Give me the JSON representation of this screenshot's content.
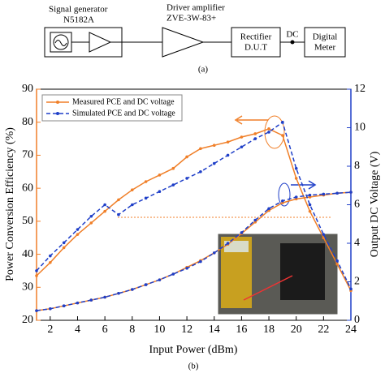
{
  "diagram": {
    "generator_title": "Signal generator",
    "generator_model": "N5182A",
    "amp_title": "Driver amplifier",
    "amp_model": "ZVE-3W-83+",
    "rectifier": "Rectifier",
    "dut": "D.U.T",
    "dc": "DC",
    "meter_1": "Digital",
    "meter_2": "Meter",
    "caption": "(a)"
  },
  "chart_data": {
    "type": "line",
    "caption": "(b)",
    "x_label": "Input Power (dBm)",
    "y_label": "Power Conversion Efficiency (%)",
    "y2_label": "Output DC Voltage (V)",
    "x": [
      1,
      2,
      3,
      4,
      5,
      6,
      7,
      8,
      9,
      10,
      11,
      12,
      13,
      14,
      15,
      16,
      17,
      18,
      19,
      20,
      21,
      22,
      23,
      24
    ],
    "xlim": [
      1,
      24
    ],
    "xticks": [
      2,
      4,
      6,
      8,
      10,
      12,
      14,
      16,
      18,
      20,
      22,
      24
    ],
    "ylim": [
      20,
      90
    ],
    "yticks": [
      20,
      30,
      40,
      50,
      60,
      70,
      80,
      90
    ],
    "y2lim": [
      0,
      12
    ],
    "y2ticks": [
      0,
      2,
      4,
      6,
      8,
      10,
      12
    ],
    "y_color": "#f07f28",
    "y2_color": "#1f3fc8",
    "series": [
      {
        "name": "Measured PCE and DC voltage",
        "color": "#f07f28",
        "line_style": "solid",
        "values": [
          33.5,
          37.5,
          42,
          46,
          49.5,
          53,
          56.5,
          59.5,
          62,
          64,
          66,
          69.5,
          72,
          73,
          74,
          75.5,
          76.5,
          78,
          76,
          63,
          53,
          45,
          37,
          29
        ],
        "y2_values": [
          0.5,
          0.6,
          0.75,
          0.9,
          1.05,
          1.2,
          1.4,
          1.6,
          1.85,
          2.1,
          2.4,
          2.75,
          3.1,
          3.5,
          3.95,
          4.5,
          5.1,
          5.7,
          6.1,
          6.3,
          6.4,
          6.5,
          6.6,
          6.65
        ]
      },
      {
        "name": "Simulated PCE and DC voltage",
        "color": "#1f3fc8",
        "line_style": "dashed",
        "values": [
          35,
          39.5,
          43.5,
          47.5,
          51.5,
          55,
          52,
          55,
          57,
          59,
          61,
          63,
          65,
          67.5,
          70,
          72.5,
          75,
          77,
          80,
          66,
          55,
          46,
          38,
          29.5
        ],
        "y2_values": [
          0.5,
          0.6,
          0.75,
          0.9,
          1.05,
          1.2,
          1.4,
          1.6,
          1.85,
          2.1,
          2.4,
          2.7,
          3.05,
          3.5,
          4.0,
          4.55,
          5.2,
          5.8,
          6.2,
          6.4,
          6.5,
          6.55,
          6.6,
          6.65
        ]
      }
    ]
  }
}
